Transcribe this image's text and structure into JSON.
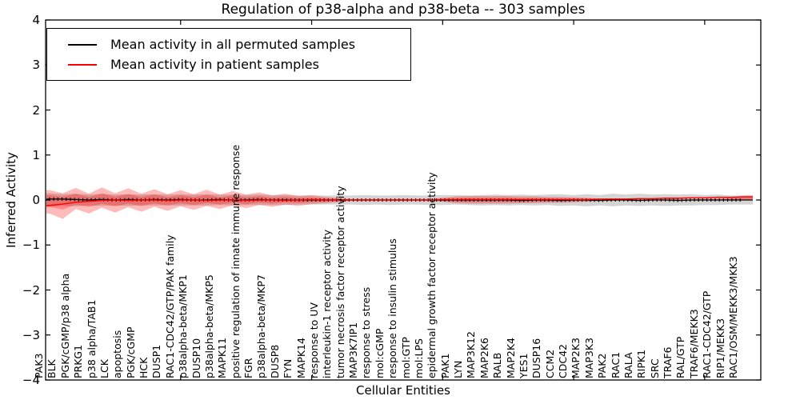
{
  "title": "Regulation of p38-alpha and p38-beta -- 303 samples",
  "axes": {
    "ylabel": "Inferred Activity",
    "xlabel": "Cellular Entities",
    "yticks": [
      4,
      3,
      2,
      1,
      0,
      -1,
      -2,
      -3,
      -4
    ]
  },
  "chart_data": {
    "type": "line",
    "title": "Regulation of p38-alpha and p38-beta -- 303 samples",
    "xlabel": "Cellular Entities",
    "ylabel": "Inferred Activity",
    "ylim": [
      -4,
      4
    ],
    "yticks": [
      -4,
      -3,
      -2,
      -1,
      0,
      1,
      2,
      3,
      4
    ],
    "grid": false,
    "legend_position": "upper left",
    "categories": [
      "PAK3",
      "BLK",
      "PGK/cGMP/p38 alpha",
      "PRKG1",
      "p38 alpha/TAB1",
      "LCK",
      "apoptosis",
      "PGK/cGMP",
      "HCK",
      "DUSP1",
      "RAC1-CDC42/GTP/PAK family",
      "p38alpha-beta/MKP1",
      "DUSP10",
      "p38alpha-beta/MKP5",
      "MAPK11",
      "positive regulation of innate immune response",
      "FGR",
      "p38alpha-beta/MKP7",
      "DUSP8",
      "FYN",
      "MAPK14",
      "response to UV",
      "interleukin-1 receptor activity",
      "tumor necrosis factor receptor activity",
      "MAP3K7IP1",
      "response to stress",
      "mol:cGMP",
      "response to insulin stimulus",
      "mol:GTP",
      "mol:LPS",
      "epidermal growth factor receptor activity",
      "PAK1",
      "LYN",
      "MAP3K12",
      "MAP2K6",
      "RALB",
      "MAP2K4",
      "YES1",
      "DUSP16",
      "CCM2",
      "CDC42",
      "MAP2K3",
      "MAP3K3",
      "PAK2",
      "RAC1",
      "RALA",
      "RIPK1",
      "SRC",
      "TRAF6",
      "RAL/GTP",
      "TRAF6/MEKK3",
      "RAC1-CDC42/GTP",
      "RIP1/MEKK3",
      "RAC1/OSM/MEKK3/MKK3"
    ],
    "series": [
      {
        "name": "Mean activity in all permuted samples",
        "color": "#000000",
        "values": [
          0.02,
          0.02,
          0.01,
          0.0,
          0.01,
          0.0,
          0.01,
          0.0,
          0.01,
          0.0,
          0.01,
          0.0,
          0.0,
          0.01,
          0.0,
          0.0,
          0.01,
          0.0,
          0.0,
          0.0,
          0.0,
          0.0,
          0.0,
          0.0,
          0.0,
          0.0,
          0.0,
          0.0,
          0.0,
          0.0,
          0.0,
          0.0,
          0.0,
          0.0,
          0.0,
          0.0,
          -0.01,
          0.0,
          0.0,
          -0.01,
          0.0,
          0.0,
          -0.01,
          0.0,
          0.0,
          -0.01,
          0.0,
          0.0,
          -0.01,
          0.0,
          0.0,
          0.0,
          0.0,
          0.0
        ]
      },
      {
        "name": "Mean activity in patient samples",
        "color": "#ff0000",
        "values": [
          -0.12,
          -0.09,
          -0.05,
          -0.03,
          -0.01,
          0.0,
          -0.01,
          0.0,
          0.0,
          -0.01,
          0.0,
          0.0,
          -0.01,
          0.0,
          0.0,
          -0.01,
          0.0,
          0.0,
          -0.01,
          0.0,
          0.01,
          0.0,
          0.0,
          0.0,
          0.0,
          0.0,
          0.0,
          0.0,
          0.0,
          0.0,
          0.01,
          0.01,
          0.01,
          0.01,
          0.01,
          0.01,
          0.01,
          0.01,
          0.01,
          0.01,
          0.01,
          0.01,
          0.02,
          0.02,
          0.02,
          0.03,
          0.03,
          0.04,
          0.04,
          0.05,
          0.05,
          0.06,
          0.06,
          0.07
        ]
      }
    ],
    "bands": [
      {
        "name": "permuted samples range",
        "color": "#999999",
        "opacity": 0.42,
        "upper": [
          0.15,
          0.13,
          0.14,
          0.12,
          0.14,
          0.12,
          0.13,
          0.12,
          0.13,
          0.12,
          0.13,
          0.12,
          0.13,
          0.12,
          0.12,
          0.11,
          0.12,
          0.11,
          0.11,
          0.1,
          0.1,
          0.1,
          0.1,
          0.1,
          0.11,
          0.1,
          0.1,
          0.11,
          0.1,
          0.1,
          0.11,
          0.11,
          0.1,
          0.11,
          0.12,
          0.11,
          0.12,
          0.11,
          0.12,
          0.13,
          0.11,
          0.13,
          0.11,
          0.14,
          0.12,
          0.14,
          0.12,
          0.13,
          0.12,
          0.13,
          0.11,
          0.12,
          0.1,
          0.1
        ],
        "lower": [
          -0.15,
          -0.13,
          -0.14,
          -0.12,
          -0.13,
          -0.12,
          -0.13,
          -0.12,
          -0.12,
          -0.12,
          -0.12,
          -0.12,
          -0.12,
          -0.11,
          -0.12,
          -0.11,
          -0.11,
          -0.11,
          -0.11,
          -0.1,
          -0.1,
          -0.1,
          -0.1,
          -0.1,
          -0.11,
          -0.1,
          -0.11,
          -0.1,
          -0.1,
          -0.11,
          -0.11,
          -0.1,
          -0.11,
          -0.12,
          -0.11,
          -0.12,
          -0.11,
          -0.12,
          -0.11,
          -0.13,
          -0.12,
          -0.14,
          -0.12,
          -0.14,
          -0.12,
          -0.13,
          -0.12,
          -0.13,
          -0.12,
          -0.12,
          -0.11,
          -0.11,
          -0.1,
          -0.1
        ]
      },
      {
        "name": "patient samples range",
        "color": "#ff0000",
        "opacity": 0.27,
        "upper": [
          0.22,
          0.15,
          0.27,
          0.14,
          0.28,
          0.15,
          0.26,
          0.14,
          0.24,
          0.13,
          0.22,
          0.13,
          0.23,
          0.12,
          0.2,
          0.12,
          0.17,
          0.1,
          0.14,
          0.09,
          0.11,
          0.07,
          0.05,
          0.02,
          0.02,
          0.02,
          0.02,
          0.02,
          0.02,
          0.02,
          0.05,
          0.08,
          0.09,
          0.09,
          0.09,
          0.09,
          0.08,
          0.08,
          0.07,
          0.07,
          0.06,
          0.05,
          0.03,
          0.02,
          0.02,
          0.02,
          0.02,
          0.02,
          0.02,
          0.02,
          0.03,
          0.03,
          0.05,
          0.1
        ],
        "lower": [
          -0.3,
          -0.42,
          -0.2,
          -0.3,
          -0.17,
          -0.28,
          -0.16,
          -0.26,
          -0.15,
          -0.24,
          -0.14,
          -0.22,
          -0.13,
          -0.2,
          -0.12,
          -0.18,
          -0.11,
          -0.15,
          -0.1,
          -0.13,
          -0.09,
          -0.07,
          -0.05,
          -0.02,
          -0.02,
          -0.02,
          -0.02,
          -0.02,
          -0.02,
          -0.02,
          -0.04,
          -0.07,
          -0.08,
          -0.08,
          -0.08,
          -0.08,
          -0.07,
          -0.07,
          -0.06,
          -0.06,
          -0.05,
          -0.04,
          -0.02,
          -0.01,
          -0.01,
          -0.01,
          -0.01,
          -0.01,
          -0.01,
          -0.01,
          -0.01,
          -0.01,
          0.0,
          0.02
        ]
      }
    ]
  }
}
